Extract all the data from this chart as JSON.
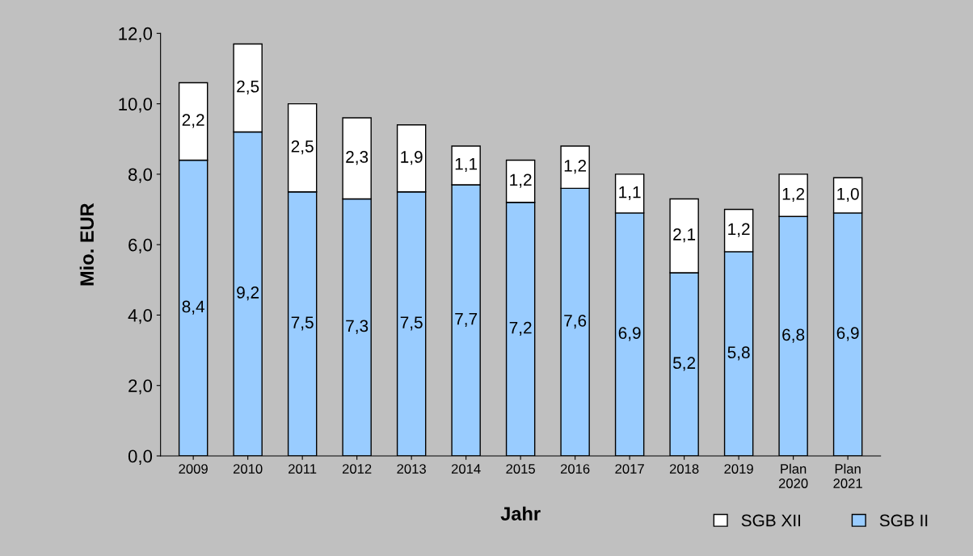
{
  "chart_data": {
    "type": "bar",
    "stacked": true,
    "xlabel": "Jahr",
    "ylabel": "Mio. EUR",
    "categories": [
      "2009",
      "2010",
      "2011",
      "2012",
      "2013",
      "2014",
      "2015",
      "2016",
      "2017",
      "2018",
      "2019",
      "Plan\n2020",
      "Plan\n2021"
    ],
    "series": [
      {
        "name": "SGB II",
        "color": "#99ccff",
        "values": [
          8.4,
          9.2,
          7.5,
          7.3,
          7.5,
          7.7,
          7.2,
          7.6,
          6.9,
          5.2,
          5.8,
          6.8,
          6.9
        ],
        "value_labels": [
          "8,4",
          "9,2",
          "7,5",
          "7,3",
          "7,5",
          "7,7",
          "7,2",
          "7,6",
          "6,9",
          "5,2",
          "5,8",
          "6,8",
          "6,9"
        ]
      },
      {
        "name": "SGB XII",
        "color": "#ffffff",
        "values": [
          2.2,
          2.5,
          2.5,
          2.3,
          1.9,
          1.1,
          1.2,
          1.2,
          1.1,
          2.1,
          1.2,
          1.2,
          1.0
        ],
        "value_labels": [
          "2,2",
          "2,5",
          "2,5",
          "2,3",
          "1,9",
          "1,1",
          "1,2",
          "1,2",
          "1,1",
          "2,1",
          "1,2",
          "1,2",
          "1,0"
        ]
      }
    ],
    "ylim": [
      0,
      12
    ],
    "yticks": [
      {
        "value": 0,
        "label": "0,0"
      },
      {
        "value": 2,
        "label": "2,0"
      },
      {
        "value": 4,
        "label": "4,0"
      },
      {
        "value": 6,
        "label": "6,0"
      },
      {
        "value": 8,
        "label": "8,0"
      },
      {
        "value": 10,
        "label": "10,0"
      },
      {
        "value": 12,
        "label": "12,0"
      }
    ],
    "grid": false,
    "legend": "bottom right"
  }
}
